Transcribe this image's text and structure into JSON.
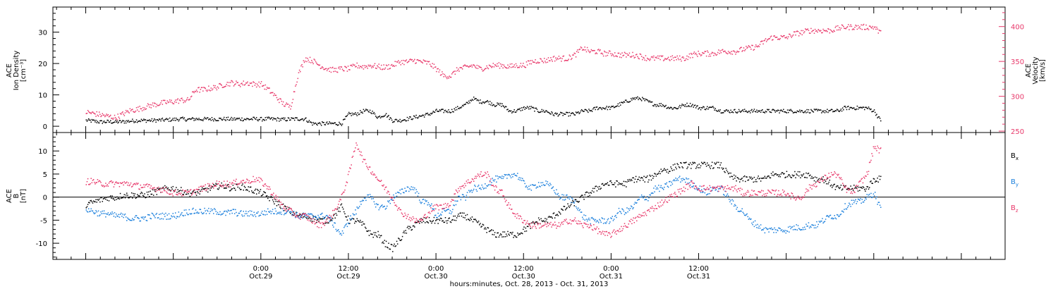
{
  "chart_data": [
    {
      "type": "scatter",
      "panel": "ion-density-velocity",
      "left_axis": {
        "label_lines": [
          "ACE",
          "Ion Density"
        ],
        "unit_label": "[cm⁻³]",
        "ylim": [
          -2,
          38
        ],
        "ticks": [
          0,
          10,
          20,
          30
        ],
        "color": "#000000"
      },
      "right_axis": {
        "label_lines": [
          "ACE",
          "Velocity"
        ],
        "unit_label": "[km/s]",
        "ylim": [
          248,
          428
        ],
        "ticks": [
          250,
          300,
          350,
          400
        ],
        "color": "#e8386a"
      },
      "x_hours": [
        -24,
        -23,
        -22,
        -21,
        -20,
        -19,
        -18,
        -17,
        -16,
        -15,
        -14,
        -13,
        -12,
        -11,
        -10,
        -9,
        -8,
        -7,
        -6,
        -5,
        -4,
        -3,
        -2,
        -1,
        0,
        1,
        2,
        3,
        4,
        5,
        6,
        7,
        8,
        9,
        10,
        11,
        12,
        13,
        14,
        15,
        16,
        17,
        18,
        19,
        20,
        21,
        22,
        23,
        24,
        25,
        26,
        27,
        28,
        29,
        30,
        31,
        32,
        33,
        34,
        35,
        36,
        37,
        38,
        39,
        40,
        41,
        42,
        43,
        44,
        45,
        46,
        47,
        48,
        49,
        50,
        51,
        52,
        53,
        54,
        55,
        56,
        57,
        58,
        59,
        60,
        61,
        62,
        63,
        64,
        65,
        66,
        67,
        68,
        69,
        70,
        71,
        72,
        73,
        74,
        75,
        76,
        77,
        78,
        79,
        80,
        81,
        82,
        83,
        84,
        85
      ],
      "series": [
        {
          "axis": "left",
          "color": "#000000",
          "values": [
            2,
            1.8,
            1.5,
            1.6,
            1.5,
            1.6,
            1.8,
            2,
            2,
            2,
            2.1,
            2.2,
            2.3,
            2.5,
            2.3,
            2.5,
            2.4,
            2.5,
            2.4,
            2.5,
            2.4,
            2.5,
            2.4,
            2.5,
            2.4,
            2.5,
            2.4,
            2.3,
            2.4,
            2.5,
            2.5,
            1,
            1,
            1,
            1,
            1,
            4,
            4,
            5,
            5,
            3,
            4,
            2,
            2,
            2.5,
            3,
            3.5,
            4,
            5,
            5,
            5,
            6,
            7,
            9,
            8,
            8,
            7,
            7,
            5,
            5,
            6,
            6,
            5,
            5,
            4,
            4,
            4,
            4,
            5,
            5,
            6,
            6,
            6,
            7,
            8,
            9,
            9,
            8,
            7,
            7,
            6,
            6,
            7,
            7,
            6,
            6,
            6,
            5,
            5,
            5,
            5,
            5,
            5,
            5,
            5,
            5,
            5,
            5,
            5,
            5,
            5,
            5,
            5,
            5,
            6,
            6,
            6,
            6,
            5,
            1.5
          ]
        },
        {
          "axis": "right",
          "color": "#e8386a",
          "values": [
            278,
            276,
            274,
            272,
            270,
            275,
            280,
            282,
            285,
            288,
            290,
            292,
            293,
            295,
            295,
            310,
            310,
            312,
            314,
            318,
            320,
            318,
            320,
            318,
            318,
            310,
            300,
            290,
            285,
            330,
            355,
            352,
            345,
            340,
            338,
            340,
            340,
            345,
            343,
            345,
            343,
            342,
            345,
            350,
            350,
            352,
            350,
            348,
            340,
            330,
            330,
            340,
            342,
            345,
            340,
            343,
            345,
            345,
            343,
            345,
            345,
            350,
            352,
            352,
            355,
            355,
            355,
            360,
            370,
            365,
            365,
            362,
            362,
            360,
            360,
            360,
            358,
            355,
            355,
            355,
            355,
            355,
            355,
            360,
            362,
            362,
            362,
            365,
            365,
            365,
            368,
            370,
            372,
            380,
            385,
            385,
            385,
            390,
            392,
            395,
            395,
            395,
            395,
            398,
            400,
            400,
            400,
            400,
            400,
            390
          ]
        }
      ]
    },
    {
      "type": "scatter",
      "panel": "magnetic-field",
      "left_axis": {
        "label_lines": [
          "ACE",
          "B"
        ],
        "unit_label": "[nT]",
        "ylim": [
          -13.5,
          14
        ],
        "ticks": [
          -10,
          -5,
          0,
          5,
          10
        ],
        "color": "#000000"
      },
      "zero_line": true,
      "x_hours": [
        -24,
        -23,
        -22,
        -21,
        -20,
        -19,
        -18,
        -17,
        -16,
        -15,
        -14,
        -13,
        -12,
        -11,
        -10,
        -9,
        -8,
        -7,
        -6,
        -5,
        -4,
        -3,
        -2,
        -1,
        0,
        1,
        2,
        3,
        4,
        5,
        6,
        7,
        8,
        9,
        10,
        11,
        12,
        13,
        14,
        15,
        16,
        17,
        18,
        19,
        20,
        21,
        22,
        23,
        24,
        25,
        26,
        27,
        28,
        29,
        30,
        31,
        32,
        33,
        34,
        35,
        36,
        37,
        38,
        39,
        40,
        41,
        42,
        43,
        44,
        45,
        46,
        47,
        48,
        49,
        50,
        51,
        52,
        53,
        54,
        55,
        56,
        57,
        58,
        59,
        60,
        61,
        62,
        63,
        64,
        65,
        66,
        67,
        68,
        69,
        70,
        71,
        72,
        73,
        74,
        75,
        76,
        77,
        78,
        79,
        80,
        81,
        82,
        83,
        84,
        85
      ],
      "series": [
        {
          "name_base": "B",
          "name_sub": "x",
          "color": "#000000",
          "values": [
            -1.5,
            -1,
            -0.5,
            0,
            0,
            0.5,
            0.5,
            0.5,
            0.5,
            1,
            1.5,
            2,
            2,
            1.5,
            1,
            1,
            1.5,
            2,
            2.5,
            2.5,
            2,
            2.5,
            2,
            1.5,
            1,
            0,
            -1,
            -2,
            -3,
            -4,
            -4,
            -4.5,
            -5,
            -5,
            -4,
            -2,
            -5,
            -5,
            -6,
            -8,
            -8,
            -10,
            -11,
            -9,
            -7,
            -6,
            -5,
            -5,
            -5,
            -5,
            -5,
            -4,
            -4,
            -5,
            -6,
            -7,
            -8,
            -8,
            -8,
            -8,
            -7,
            -6,
            -5,
            -5,
            -4,
            -3,
            -2,
            -1,
            0,
            1,
            2,
            3,
            3,
            3,
            3,
            4,
            4,
            4,
            5,
            6,
            6,
            7,
            7,
            7,
            7,
            7,
            7,
            7,
            5,
            4,
            4,
            4,
            4,
            4,
            5,
            5,
            5,
            5,
            5,
            5,
            4,
            4,
            3,
            2,
            2,
            2,
            2,
            2,
            4,
            4
          ]
        },
        {
          "name_base": "B",
          "name_sub": "y",
          "color": "#1a7fdc",
          "values": [
            -2.5,
            -3,
            -3.5,
            -3.5,
            -4,
            -4,
            -4.5,
            -4.5,
            -4.5,
            -4,
            -4,
            -4,
            -4,
            -3.5,
            -3,
            -3,
            -3,
            -3,
            -3,
            -3.5,
            -3,
            -3.5,
            -3.5,
            -3.5,
            -3.5,
            -3,
            -3,
            -3,
            -3,
            -4,
            -4,
            -4,
            -4,
            -4,
            -6,
            -8,
            -5,
            -3,
            0,
            0,
            -2,
            -2,
            0,
            1,
            2,
            2,
            -1,
            -1,
            -4,
            -3,
            -3,
            0,
            0,
            2,
            2,
            3,
            4,
            4,
            5,
            5,
            3,
            2,
            3,
            3,
            2,
            0,
            0,
            -1,
            -4,
            -5,
            -5,
            -5,
            -5,
            -3,
            -3,
            -2,
            0,
            0,
            2,
            2,
            3,
            4,
            4,
            3,
            2,
            1,
            2,
            2,
            0,
            -2,
            -3,
            -5,
            -6,
            -7,
            -7,
            -7,
            -7,
            -6.5,
            -6.5,
            -6,
            -6,
            -5,
            -4,
            -4,
            -2,
            -1,
            -1,
            0,
            1,
            -3
          ]
        },
        {
          "name_base": "B",
          "name_sub": "z",
          "color": "#e8386a",
          "values": [
            3.5,
            3.5,
            3,
            3,
            3,
            3,
            3,
            2.5,
            2.5,
            2,
            2,
            1.5,
            1,
            1,
            1,
            1.5,
            2,
            2.5,
            3,
            3,
            3,
            3.5,
            3.5,
            4,
            3.5,
            2,
            0,
            -2,
            -3,
            -4,
            -4,
            -5,
            -6,
            -5,
            -3,
            0,
            5,
            12,
            8,
            6,
            4,
            2,
            0,
            -3,
            -4,
            -5,
            -5,
            -3,
            -2,
            -2,
            -1,
            2,
            3,
            4,
            5,
            5,
            2,
            1,
            -2,
            -4,
            -5,
            -6,
            -6,
            -6,
            -6,
            -6,
            -5,
            -5,
            -6,
            -6,
            -7,
            -8,
            -8,
            -7,
            -6,
            -5,
            -4,
            -3,
            -2,
            -1,
            0,
            1,
            2,
            3,
            2,
            2,
            2,
            2,
            2,
            2,
            1,
            1,
            1,
            1,
            1,
            1,
            1,
            0,
            0,
            2,
            3,
            4,
            5,
            5,
            2,
            1,
            3,
            5,
            11,
            10
          ]
        }
      ]
    }
  ],
  "x_axis": {
    "xlim_hours": [
      -28.5,
      102
    ],
    "major_ticks": [
      {
        "hour": 0,
        "time": "0:00",
        "date": "Oct.29"
      },
      {
        "hour": 12,
        "time": "12:00",
        "date": "Oct.29"
      },
      {
        "hour": 24,
        "time": "0:00",
        "date": "Oct.30"
      },
      {
        "hour": 36,
        "time": "12:00",
        "date": "Oct.30"
      },
      {
        "hour": 48,
        "time": "0:00",
        "date": "Oct.31"
      },
      {
        "hour": 60,
        "time": "12:00",
        "date": "Oct.31"
      }
    ],
    "minor_tick_step_hours": 2,
    "title": "hours:minutes, Oct. 28, 2013 - Oct. 31, 2013"
  }
}
